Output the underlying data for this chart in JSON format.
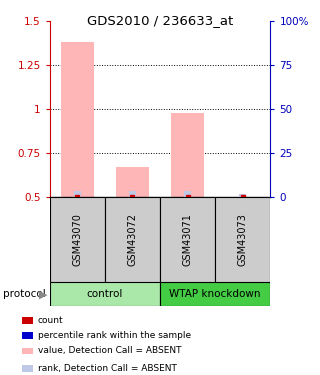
{
  "title": "GDS2010 / 236633_at",
  "samples": [
    "GSM43070",
    "GSM43072",
    "GSM43071",
    "GSM43073"
  ],
  "bar_values": [
    1.38,
    0.67,
    0.98,
    0.502
  ],
  "bar_color_absent": "#ffb6b6",
  "bar_bottom": 0.5,
  "rank_values": [
    0.532,
    0.532,
    0.535,
    0.518
  ],
  "rank_color_absent": "#c0c8e8",
  "left_ylim": [
    0.5,
    1.5
  ],
  "left_yticks": [
    0.5,
    0.75,
    1.0,
    1.25,
    1.5
  ],
  "left_ytick_labels": [
    "0.5",
    "0.75",
    "1",
    "1.25",
    "1.5"
  ],
  "right_ylim": [
    0,
    100
  ],
  "right_yticks": [
    0,
    25,
    50,
    75,
    100
  ],
  "right_ytick_labels": [
    "0",
    "25",
    "50",
    "75",
    "100%"
  ],
  "hlines": [
    0.75,
    1.0,
    1.25
  ],
  "protocol_groups": [
    {
      "label": "control",
      "start": 0,
      "end": 2,
      "color": "#aae8aa"
    },
    {
      "label": "WTAP knockdown",
      "start": 2,
      "end": 4,
      "color": "#44cc44"
    }
  ],
  "protocol_label": "protocol",
  "legend_items": [
    {
      "color": "#cc0000",
      "label": "count"
    },
    {
      "color": "#0000cc",
      "label": "percentile rank within the sample"
    },
    {
      "color": "#ffb6b6",
      "label": "value, Detection Call = ABSENT"
    },
    {
      "color": "#c0c8e8",
      "label": "rank, Detection Call = ABSENT"
    }
  ],
  "left_axis_color": "#cc0000",
  "right_axis_color": "#0000bb",
  "bar_width": 0.6,
  "rank_bar_width": 0.12,
  "sample_box_color": "#cccccc"
}
